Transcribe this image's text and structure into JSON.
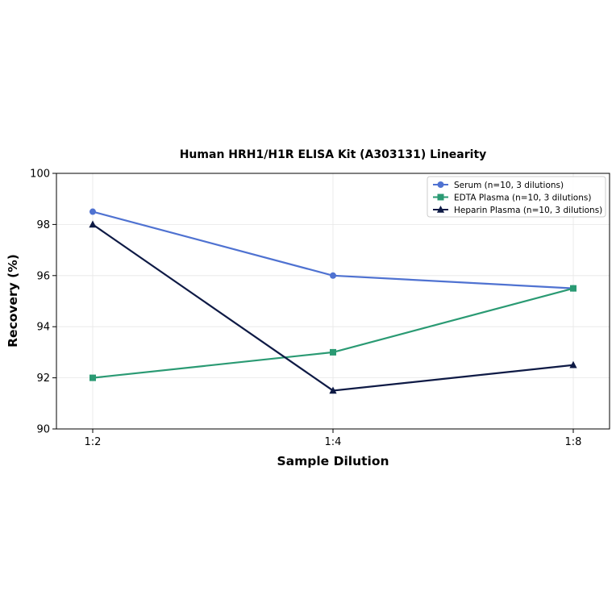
{
  "chart_data": {
    "type": "line",
    "title": "Human HRH1/H1R ELISA Kit (A303131) Linearity",
    "xlabel": "Sample Dilution",
    "ylabel": "Recovery (%)",
    "categories": [
      "1:2",
      "1:4",
      "1:8"
    ],
    "ylim": [
      90,
      100
    ],
    "yticks": [
      90,
      92,
      94,
      96,
      98,
      100
    ],
    "grid": true,
    "legend_position": "top-right",
    "series": [
      {
        "name": "Serum (n=10, 3 dilutions)",
        "values": [
          98.5,
          96.0,
          95.5
        ],
        "color": "#4f72d1",
        "marker": "circle"
      },
      {
        "name": "EDTA Plasma (n=10, 3 dilutions)",
        "values": [
          92.0,
          93.0,
          95.5
        ],
        "color": "#2a9a73",
        "marker": "square"
      },
      {
        "name": "Heparin Plasma (n=10, 3 dilutions)",
        "values": [
          98.0,
          91.5,
          92.5
        ],
        "color": "#0e1a45",
        "marker": "triangle"
      }
    ]
  }
}
